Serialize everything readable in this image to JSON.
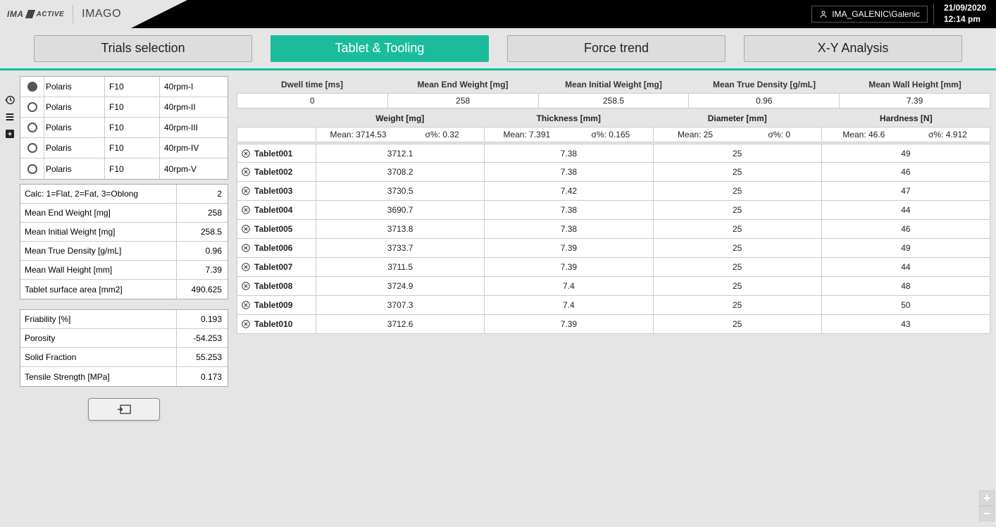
{
  "header": {
    "brand": "IMA",
    "brand_suffix": "ACTIVE",
    "app_name": "IMAGO",
    "user_label": "IMA_GALENIC\\Galenic",
    "date": "21/09/2020",
    "time": "12:14 pm"
  },
  "tabs": [
    {
      "label": "Trials selection",
      "active": false
    },
    {
      "label": "Tablet & Tooling",
      "active": true
    },
    {
      "label": "Force trend",
      "active": false
    },
    {
      "label": "X-Y Analysis",
      "active": false
    }
  ],
  "trials": [
    {
      "selected": true,
      "name": "Polaris",
      "formula": "F10",
      "run": "40rpm-I"
    },
    {
      "selected": false,
      "name": "Polaris",
      "formula": "F10",
      "run": "40rpm-II"
    },
    {
      "selected": false,
      "name": "Polaris",
      "formula": "F10",
      "run": "40rpm-III"
    },
    {
      "selected": false,
      "name": "Polaris",
      "formula": "F10",
      "run": "40rpm-IV"
    },
    {
      "selected": false,
      "name": "Polaris",
      "formula": "F10",
      "run": "40rpm-V"
    }
  ],
  "properties_a": [
    {
      "label": "Calc: 1=Flat, 2=Fat, 3=Oblong",
      "value": "2"
    },
    {
      "label": "Mean End Weight [mg]",
      "value": "258"
    },
    {
      "label": "Mean Initial Weight [mg]",
      "value": "258.5"
    },
    {
      "label": "Mean True Density [g/mL]",
      "value": "0.96"
    },
    {
      "label": "Mean Wall Height [mm]",
      "value": "7.39"
    },
    {
      "label": "Tablet surface area [mm2]",
      "value": "490.625"
    }
  ],
  "properties_b": [
    {
      "label": "Friability [%]",
      "value": "0.193"
    },
    {
      "label": "Porosity",
      "value": "-54.253"
    },
    {
      "label": "Solid Fraction",
      "value": "55.253"
    },
    {
      "label": "Tensile Strength [MPa]",
      "value": "0.173"
    }
  ],
  "summary_headers": [
    "Dwell time [ms]",
    "Mean End Weight [mg]",
    "Mean Initial Weight [mg]",
    "Mean True Density [g/mL]",
    "Mean Wall Height [mm]"
  ],
  "summary_values": [
    "0",
    "258",
    "258.5",
    "0.96",
    "7.39"
  ],
  "metric_headers": [
    "Weight [mg]",
    "Thickness [mm]",
    "Diameter [mm]",
    "Hardness [N]"
  ],
  "metric_stats": [
    {
      "mean": "Mean: 3714.53",
      "sigma": "σ%: 0.32"
    },
    {
      "mean": "Mean: 7.391",
      "sigma": "σ%: 0.165"
    },
    {
      "mean": "Mean: 25",
      "sigma": "σ%: 0"
    },
    {
      "mean": "Mean: 46.6",
      "sigma": "σ%: 4.912"
    }
  ],
  "tablets": [
    {
      "name": "Tablet001",
      "weight": "3712.1",
      "thickness": "7.38",
      "diameter": "25",
      "hardness": "49"
    },
    {
      "name": "Tablet002",
      "weight": "3708.2",
      "thickness": "7.38",
      "diameter": "25",
      "hardness": "46"
    },
    {
      "name": "Tablet003",
      "weight": "3730.5",
      "thickness": "7.42",
      "diameter": "25",
      "hardness": "47"
    },
    {
      "name": "Tablet004",
      "weight": "3690.7",
      "thickness": "7.38",
      "diameter": "25",
      "hardness": "44"
    },
    {
      "name": "Tablet005",
      "weight": "3713.8",
      "thickness": "7.38",
      "diameter": "25",
      "hardness": "46"
    },
    {
      "name": "Tablet006",
      "weight": "3733.7",
      "thickness": "7.39",
      "diameter": "25",
      "hardness": "49"
    },
    {
      "name": "Tablet007",
      "weight": "3711.5",
      "thickness": "7.39",
      "diameter": "25",
      "hardness": "44"
    },
    {
      "name": "Tablet008",
      "weight": "3724.9",
      "thickness": "7.4",
      "diameter": "25",
      "hardness": "48"
    },
    {
      "name": "Tablet009",
      "weight": "3707.3",
      "thickness": "7.4",
      "diameter": "25",
      "hardness": "50"
    },
    {
      "name": "Tablet010",
      "weight": "3712.6",
      "thickness": "7.39",
      "diameter": "25",
      "hardness": "43"
    }
  ],
  "colors": {
    "accent": "#1abc9c",
    "black": "#000000",
    "page_bg": "#e5e5e5",
    "border": "#cccccc"
  }
}
